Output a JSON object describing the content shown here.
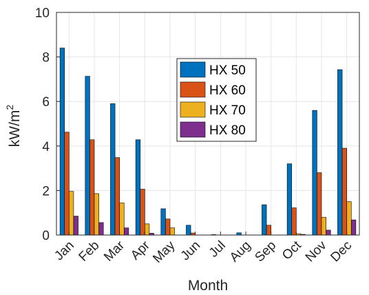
{
  "chart_data": {
    "type": "bar",
    "xlabel": "Month",
    "ylabel": "kW/m",
    "ylabel_superscript": "2",
    "ylim": [
      0,
      10
    ],
    "yticks": [
      0,
      2,
      4,
      6,
      8,
      10
    ],
    "grid": true,
    "legend_position": "top-center",
    "categories": [
      "Jan",
      "Feb",
      "Mar",
      "Apr",
      "May",
      "Jun",
      "Jul",
      "Aug",
      "Sep",
      "Oct",
      "Nov",
      "Dec"
    ],
    "series": [
      {
        "name": "HX 50",
        "color": "#0072BD",
        "values": [
          8.4,
          7.13,
          5.9,
          4.28,
          1.18,
          0.44,
          0.02,
          0.1,
          1.36,
          3.2,
          5.6,
          7.43
        ]
      },
      {
        "name": "HX 60",
        "color": "#D95319",
        "values": [
          4.62,
          4.28,
          3.48,
          2.06,
          0.72,
          0.09,
          0.0,
          0.0,
          0.44,
          1.22,
          2.8,
          3.9
        ]
      },
      {
        "name": "HX 70",
        "color": "#EDB120",
        "values": [
          1.96,
          1.86,
          1.44,
          0.5,
          0.32,
          0.0,
          0.0,
          0.0,
          0.0,
          0.06,
          0.8,
          1.5
        ]
      },
      {
        "name": "HX 80",
        "color": "#7E2F8E",
        "values": [
          0.85,
          0.56,
          0.32,
          0.08,
          0.0,
          0.0,
          0.0,
          0.0,
          0.0,
          0.03,
          0.22,
          0.68
        ]
      }
    ]
  }
}
